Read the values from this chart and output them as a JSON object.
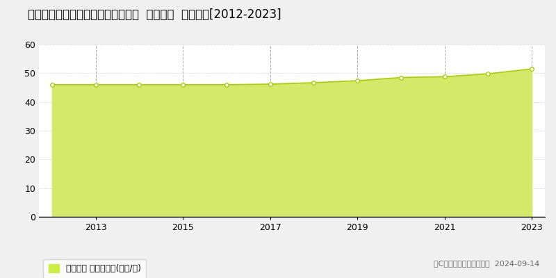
{
  "title": "大阪府堺市西区鳳西町１丁８２番２  地価公示  地価推移[2012-2023]",
  "years": [
    2012,
    2013,
    2014,
    2015,
    2016,
    2017,
    2018,
    2019,
    2020,
    2021,
    2022,
    2023
  ],
  "values": [
    46.0,
    46.0,
    46.0,
    46.0,
    46.0,
    46.2,
    46.7,
    47.4,
    48.5,
    48.8,
    49.8,
    51.5
  ],
  "ylim": [
    0,
    60
  ],
  "yticks": [
    0,
    10,
    20,
    30,
    40,
    50,
    60
  ],
  "fill_color": "#d4e86a",
  "line_color": "#aacc00",
  "marker_color": "#ffffff",
  "marker_edge_color": "#aacc00",
  "grid_color": "#cccccc",
  "vgrid_color": "#aaaaaa",
  "bg_color": "#f0f0f0",
  "plot_bg_color": "#ffffff",
  "legend_label": "地価公示 平均坤単価(万円/坤)",
  "legend_color": "#ccee44",
  "copyright_text": "（C）土地価格ドットコム  2024-09-14",
  "title_fontsize": 12,
  "axis_fontsize": 9,
  "legend_fontsize": 9,
  "copyright_fontsize": 8
}
